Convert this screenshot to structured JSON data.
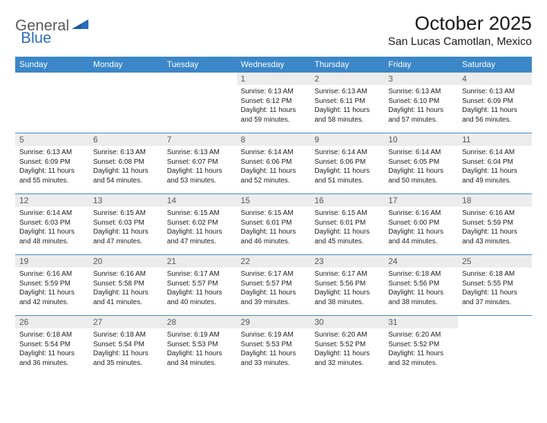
{
  "logo": {
    "part1": "General",
    "part2": "Blue"
  },
  "title": "October 2025",
  "location": "San Lucas Camotlan, Mexico",
  "colors": {
    "header_bg": "#3b87c8",
    "header_text": "#ffffff",
    "daynum_bg": "#ececec",
    "daynum_text": "#555555",
    "border": "#3b87c8",
    "logo_gray": "#5a5a5a",
    "logo_blue": "#2a6db8"
  },
  "weekdays": [
    "Sunday",
    "Monday",
    "Tuesday",
    "Wednesday",
    "Thursday",
    "Friday",
    "Saturday"
  ],
  "first_weekday_index": 3,
  "days": [
    {
      "n": 1,
      "sunrise": "6:13 AM",
      "sunset": "6:12 PM",
      "daylight": "11 hours and 59 minutes."
    },
    {
      "n": 2,
      "sunrise": "6:13 AM",
      "sunset": "6:11 PM",
      "daylight": "11 hours and 58 minutes."
    },
    {
      "n": 3,
      "sunrise": "6:13 AM",
      "sunset": "6:10 PM",
      "daylight": "11 hours and 57 minutes."
    },
    {
      "n": 4,
      "sunrise": "6:13 AM",
      "sunset": "6:09 PM",
      "daylight": "11 hours and 56 minutes."
    },
    {
      "n": 5,
      "sunrise": "6:13 AM",
      "sunset": "6:09 PM",
      "daylight": "11 hours and 55 minutes."
    },
    {
      "n": 6,
      "sunrise": "6:13 AM",
      "sunset": "6:08 PM",
      "daylight": "11 hours and 54 minutes."
    },
    {
      "n": 7,
      "sunrise": "6:13 AM",
      "sunset": "6:07 PM",
      "daylight": "11 hours and 53 minutes."
    },
    {
      "n": 8,
      "sunrise": "6:14 AM",
      "sunset": "6:06 PM",
      "daylight": "11 hours and 52 minutes."
    },
    {
      "n": 9,
      "sunrise": "6:14 AM",
      "sunset": "6:06 PM",
      "daylight": "11 hours and 51 minutes."
    },
    {
      "n": 10,
      "sunrise": "6:14 AM",
      "sunset": "6:05 PM",
      "daylight": "11 hours and 50 minutes."
    },
    {
      "n": 11,
      "sunrise": "6:14 AM",
      "sunset": "6:04 PM",
      "daylight": "11 hours and 49 minutes."
    },
    {
      "n": 12,
      "sunrise": "6:14 AM",
      "sunset": "6:03 PM",
      "daylight": "11 hours and 48 minutes."
    },
    {
      "n": 13,
      "sunrise": "6:15 AM",
      "sunset": "6:03 PM",
      "daylight": "11 hours and 47 minutes."
    },
    {
      "n": 14,
      "sunrise": "6:15 AM",
      "sunset": "6:02 PM",
      "daylight": "11 hours and 47 minutes."
    },
    {
      "n": 15,
      "sunrise": "6:15 AM",
      "sunset": "6:01 PM",
      "daylight": "11 hours and 46 minutes."
    },
    {
      "n": 16,
      "sunrise": "6:15 AM",
      "sunset": "6:01 PM",
      "daylight": "11 hours and 45 minutes."
    },
    {
      "n": 17,
      "sunrise": "6:16 AM",
      "sunset": "6:00 PM",
      "daylight": "11 hours and 44 minutes."
    },
    {
      "n": 18,
      "sunrise": "6:16 AM",
      "sunset": "5:59 PM",
      "daylight": "11 hours and 43 minutes."
    },
    {
      "n": 19,
      "sunrise": "6:16 AM",
      "sunset": "5:59 PM",
      "daylight": "11 hours and 42 minutes."
    },
    {
      "n": 20,
      "sunrise": "6:16 AM",
      "sunset": "5:58 PM",
      "daylight": "11 hours and 41 minutes."
    },
    {
      "n": 21,
      "sunrise": "6:17 AM",
      "sunset": "5:57 PM",
      "daylight": "11 hours and 40 minutes."
    },
    {
      "n": 22,
      "sunrise": "6:17 AM",
      "sunset": "5:57 PM",
      "daylight": "11 hours and 39 minutes."
    },
    {
      "n": 23,
      "sunrise": "6:17 AM",
      "sunset": "5:56 PM",
      "daylight": "11 hours and 38 minutes."
    },
    {
      "n": 24,
      "sunrise": "6:18 AM",
      "sunset": "5:56 PM",
      "daylight": "11 hours and 38 minutes."
    },
    {
      "n": 25,
      "sunrise": "6:18 AM",
      "sunset": "5:55 PM",
      "daylight": "11 hours and 37 minutes."
    },
    {
      "n": 26,
      "sunrise": "6:18 AM",
      "sunset": "5:54 PM",
      "daylight": "11 hours and 36 minutes."
    },
    {
      "n": 27,
      "sunrise": "6:18 AM",
      "sunset": "5:54 PM",
      "daylight": "11 hours and 35 minutes."
    },
    {
      "n": 28,
      "sunrise": "6:19 AM",
      "sunset": "5:53 PM",
      "daylight": "11 hours and 34 minutes."
    },
    {
      "n": 29,
      "sunrise": "6:19 AM",
      "sunset": "5:53 PM",
      "daylight": "11 hours and 33 minutes."
    },
    {
      "n": 30,
      "sunrise": "6:20 AM",
      "sunset": "5:52 PM",
      "daylight": "11 hours and 32 minutes."
    },
    {
      "n": 31,
      "sunrise": "6:20 AM",
      "sunset": "5:52 PM",
      "daylight": "11 hours and 32 minutes."
    }
  ],
  "labels": {
    "sunrise": "Sunrise:",
    "sunset": "Sunset:",
    "daylight": "Daylight:"
  }
}
